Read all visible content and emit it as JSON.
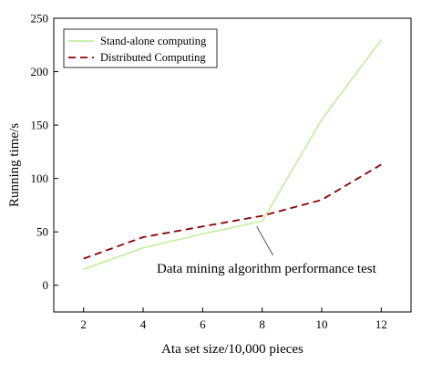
{
  "chart_data": {
    "type": "line",
    "xlabel": "Ata set size/10,000 pieces",
    "ylabel": "Running time/s",
    "x": [
      2,
      4,
      6,
      8,
      10,
      12
    ],
    "xlim": [
      1,
      13
    ],
    "ylim": [
      -25,
      250
    ],
    "xticks": [
      2,
      4,
      6,
      8,
      10,
      12
    ],
    "yticks": [
      0,
      50,
      100,
      150,
      200,
      250
    ],
    "grid": false,
    "legend_position": "top-left",
    "series": [
      {
        "name": "Stand-alone computing",
        "values": [
          15,
          35,
          48,
          60,
          155,
          230
        ],
        "color": "#b6ee8f",
        "style": "solid"
      },
      {
        "name": "Distributed Computing",
        "values": [
          25,
          45,
          55,
          65,
          80,
          113
        ],
        "color": "#8b0000",
        "style": "dashed"
      }
    ],
    "annotation": {
      "text": "Data mining algorithm performance test",
      "x": 8,
      "y": 55
    }
  }
}
